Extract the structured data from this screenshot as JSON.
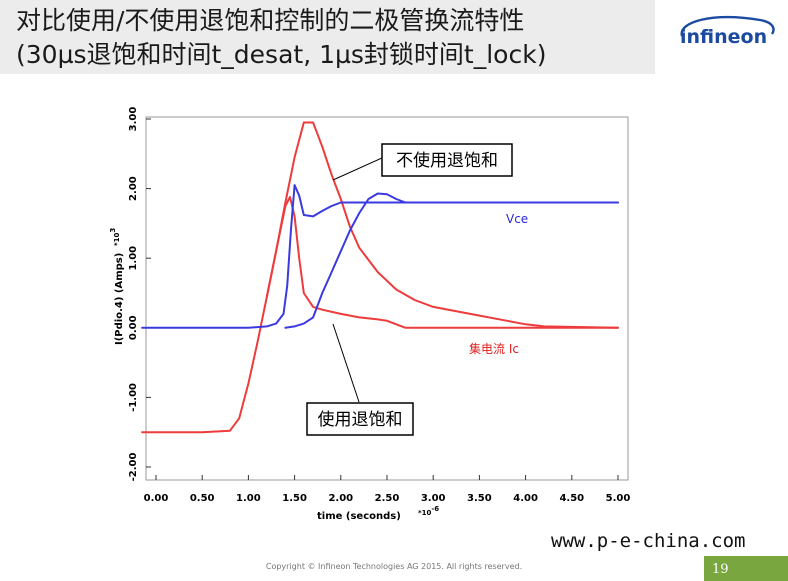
{
  "header": {
    "title_line1": "对比使用/不使用退饱和控制的二极管换流特性",
    "title_line2": "(30µs退饱和时间t_desat, 1µs封锁时间t_lock)",
    "logo_text": "infineon"
  },
  "footer": {
    "copyright": "Copyright © Infineon Technologies AG 2015. All rights reserved.",
    "page_number": "19",
    "watermark": "www.p-e-china.com"
  },
  "colors": {
    "red": "#ee3b3b",
    "blue": "#3a3ae0",
    "logo": "#1b4aa0"
  },
  "chart_data": {
    "type": "line",
    "xlabel": "time (seconds)",
    "xlabel_exp": "-6",
    "ylabel": "I(Pdio.4) (Amps)",
    "ylabel_exp": "3",
    "xlim": [
      0,
      5.0
    ],
    "ylim": [
      -2.0,
      3.0
    ],
    "x_ticks": [
      "0.00",
      "0.50",
      "1.00",
      "1.50",
      "2.00",
      "2.50",
      "3.00",
      "3.50",
      "4.00",
      "4.50",
      "5.00"
    ],
    "y_ticks": [
      "-2.00",
      "-1.00",
      "0.00",
      "1.00",
      "2.00",
      "3.00"
    ],
    "grid": false,
    "series": [
      {
        "name": "集电流 Ic",
        "color": "red",
        "x": [
          -0.15,
          0.5,
          0.8,
          0.9,
          1.0,
          1.1,
          1.2,
          1.3,
          1.4,
          1.5,
          1.6,
          1.7,
          1.8,
          1.9,
          2.0,
          2.1,
          2.2,
          2.4,
          2.6,
          2.8,
          3.0,
          3.4,
          3.8,
          4.0,
          4.2,
          5.0
        ],
        "y": [
          -1.5,
          -1.5,
          -1.48,
          -1.3,
          -0.8,
          -0.2,
          0.45,
          1.1,
          1.8,
          2.45,
          2.95,
          2.95,
          2.6,
          2.2,
          1.85,
          1.45,
          1.15,
          0.8,
          0.55,
          0.4,
          0.3,
          0.2,
          0.1,
          0.05,
          0.02,
          0.0
        ]
      },
      {
        "name": "",
        "color": "red",
        "x": [
          1.2,
          1.3,
          1.4,
          1.45,
          1.5,
          1.55,
          1.6,
          1.7,
          1.8,
          2.0,
          2.2,
          2.4,
          2.5,
          2.6,
          2.7,
          5.0
        ],
        "y": [
          0.45,
          1.1,
          1.75,
          1.88,
          1.6,
          1.0,
          0.5,
          0.3,
          0.26,
          0.2,
          0.15,
          0.12,
          0.1,
          0.05,
          0.0,
          0.0
        ]
      },
      {
        "name": "Vce",
        "color": "blue",
        "x": [
          -0.15,
          1.0,
          1.2,
          1.3,
          1.38,
          1.42,
          1.46,
          1.5,
          1.55,
          1.6,
          1.7,
          1.8,
          1.9,
          2.0,
          2.1,
          2.3,
          2.5,
          2.7,
          3.0,
          5.0
        ],
        "y": [
          0.0,
          0.0,
          0.02,
          0.06,
          0.2,
          0.6,
          1.4,
          2.05,
          1.9,
          1.62,
          1.6,
          1.68,
          1.75,
          1.8,
          1.8,
          1.8,
          1.8,
          1.8,
          1.8,
          1.8
        ]
      },
      {
        "name": "",
        "color": "blue",
        "x": [
          1.4,
          1.5,
          1.6,
          1.7,
          1.8,
          1.9,
          2.0,
          2.1,
          2.2,
          2.3,
          2.4,
          2.5,
          2.6,
          2.7,
          3.0,
          5.0
        ],
        "y": [
          0.0,
          0.02,
          0.06,
          0.15,
          0.5,
          0.8,
          1.1,
          1.4,
          1.65,
          1.85,
          1.93,
          1.92,
          1.85,
          1.8,
          1.8,
          1.8
        ]
      }
    ],
    "annotations": {
      "without": "不使用退饱和",
      "with": "使用退饱和",
      "vce_label": "Vce",
      "ic_label": "集电流 Ic"
    }
  }
}
